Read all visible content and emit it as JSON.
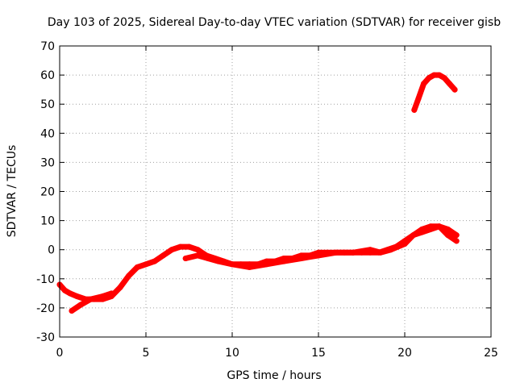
{
  "chart_data": {
    "type": "scatter",
    "title": "Day 103 of 2025, Sidereal Day-to-day VTEC variation (SDTVAR) for receiver gisb",
    "xlabel": "GPS time / hours",
    "ylabel": "SDTVAR / TECUs",
    "xlim": [
      0,
      25
    ],
    "ylim": [
      -30,
      70
    ],
    "xticks": [
      0,
      5,
      10,
      15,
      20,
      25
    ],
    "yticks": [
      -30,
      -20,
      -10,
      0,
      10,
      20,
      30,
      40,
      50,
      60,
      70
    ],
    "xtick_labels": [
      "0",
      "5",
      "10",
      "15",
      "20",
      "25"
    ],
    "ytick_labels": [
      "-30",
      "-20",
      "-10",
      "0",
      "10",
      "20",
      "30",
      "40",
      "50",
      "60",
      "70"
    ],
    "grid": true,
    "series": [
      {
        "name": "main-track",
        "color": "#ff0000",
        "x": [
          0.0,
          0.3,
          0.6,
          1.0,
          1.5,
          2.0,
          2.5,
          3.0,
          3.5,
          4.0,
          4.5,
          5.0,
          5.5,
          6.0,
          6.5,
          7.0,
          7.5,
          8.0,
          8.5,
          9.0,
          9.5,
          10.0,
          10.5,
          11.0,
          11.5,
          12.0,
          12.5,
          13.0,
          13.5,
          14.0,
          14.5,
          15.0,
          15.5,
          16.0,
          16.5,
          17.0,
          17.5,
          18.0,
          18.5,
          19.0,
          19.5,
          20.0,
          20.5,
          21.0,
          21.5,
          22.0,
          22.5,
          23.0
        ],
        "y": [
          -12,
          -14,
          -15,
          -16,
          -17,
          -17,
          -17,
          -16,
          -13,
          -9,
          -6,
          -5,
          -4,
          -2,
          0,
          1,
          1,
          0,
          -2,
          -3,
          -4,
          -5,
          -5,
          -5,
          -5,
          -4,
          -4,
          -3,
          -3,
          -2,
          -2,
          -1,
          -1,
          -1,
          -1,
          -1,
          -1,
          -1,
          -1,
          0,
          1,
          3,
          5,
          7,
          8,
          8,
          7,
          5
        ]
      },
      {
        "name": "lower-branch",
        "color": "#ff0000",
        "x": [
          0.7,
          1.2,
          1.8,
          2.5,
          3.0
        ],
        "y": [
          -21,
          -19,
          -17,
          -16,
          -15
        ]
      },
      {
        "name": "second-branch",
        "color": "#ff0000",
        "x": [
          7.3,
          8.0,
          8.6,
          9.2,
          10.0,
          11.0,
          12.0,
          13.0,
          14.0,
          15.0,
          16.0,
          17.0,
          18.0,
          18.6,
          19.2,
          20.0,
          20.5,
          21.0,
          21.5,
          22.0,
          22.5,
          23.0
        ],
        "y": [
          -3,
          -2,
          -3,
          -4,
          -5,
          -6,
          -5,
          -4,
          -3,
          -2,
          -1,
          -1,
          0,
          -1,
          0,
          2,
          5,
          6,
          7,
          8,
          5,
          3
        ]
      },
      {
        "name": "high-arc",
        "color": "#ff0000",
        "x": [
          20.55,
          20.8,
          21.1,
          21.4,
          21.7,
          22.0,
          22.3,
          22.6,
          22.9
        ],
        "y": [
          48,
          52,
          57,
          59,
          60,
          60,
          59,
          57,
          55
        ]
      }
    ]
  }
}
